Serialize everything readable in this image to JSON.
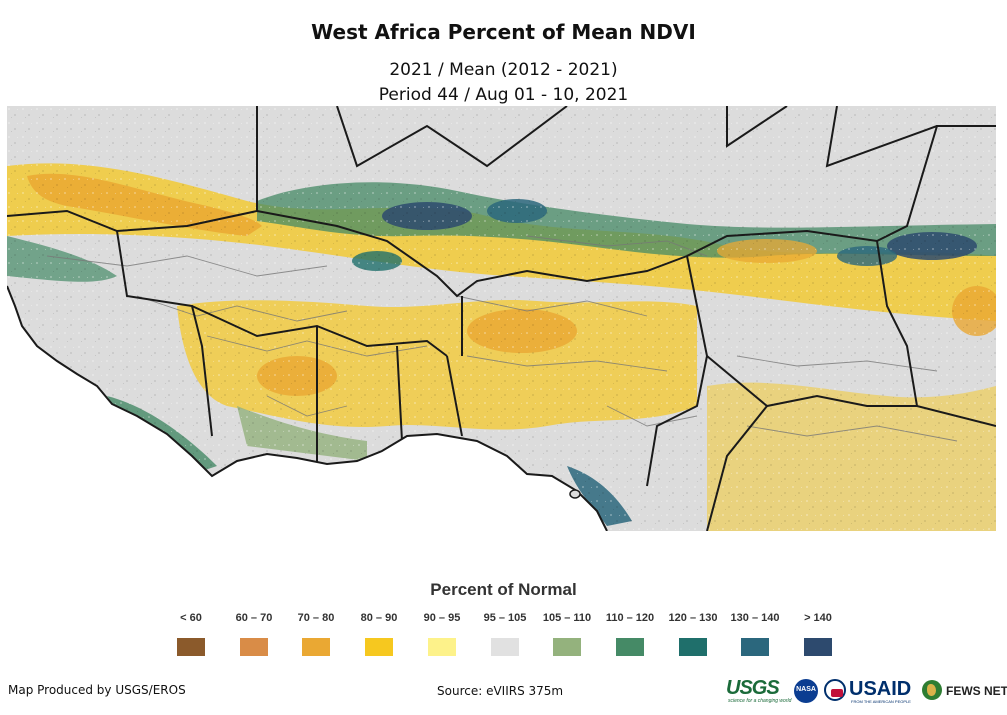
{
  "header": {
    "title": "West Africa Percent of Mean NDVI",
    "subtitle_line1": "2021 / Mean (2012 - 2021)",
    "subtitle_line2": "Period 44 / Aug 01 - 10, 2021"
  },
  "legend": {
    "title": "Percent of Normal",
    "classes": [
      {
        "label": "< 60",
        "color": "#8b5a2b"
      },
      {
        "label": "60 – 70",
        "color": "#d98c47"
      },
      {
        "label": "70 – 80",
        "color": "#eaa833"
      },
      {
        "label": "80 – 90",
        "color": "#f6c81f"
      },
      {
        "label": "90 – 95",
        "color": "#fdf28a"
      },
      {
        "label": "95 – 105",
        "color": "#e1e1e1"
      },
      {
        "label": "105 – 110",
        "color": "#94b27d"
      },
      {
        "label": "110 – 120",
        "color": "#458a66"
      },
      {
        "label": "120 – 130",
        "color": "#1f6f6b"
      },
      {
        "label": "130 – 140",
        "color": "#2b677d"
      },
      {
        "label": "> 140",
        "color": "#2d4a6e"
      }
    ]
  },
  "footer": {
    "credit": "Map Produced by USGS/EROS",
    "source": "Source: eVIIRS 375m"
  },
  "logos": {
    "usgs": "USGS",
    "usgs_tagline": "science for a changing world",
    "nasa": "NASA",
    "usaid": "USAID",
    "usaid_tagline": "FROM THE AMERICAN PEOPLE",
    "fews": "FEWS NET"
  },
  "map": {
    "background_color": "#ffffff",
    "land_color": "#dcdcdc",
    "border_color": "#1a1a1a"
  }
}
